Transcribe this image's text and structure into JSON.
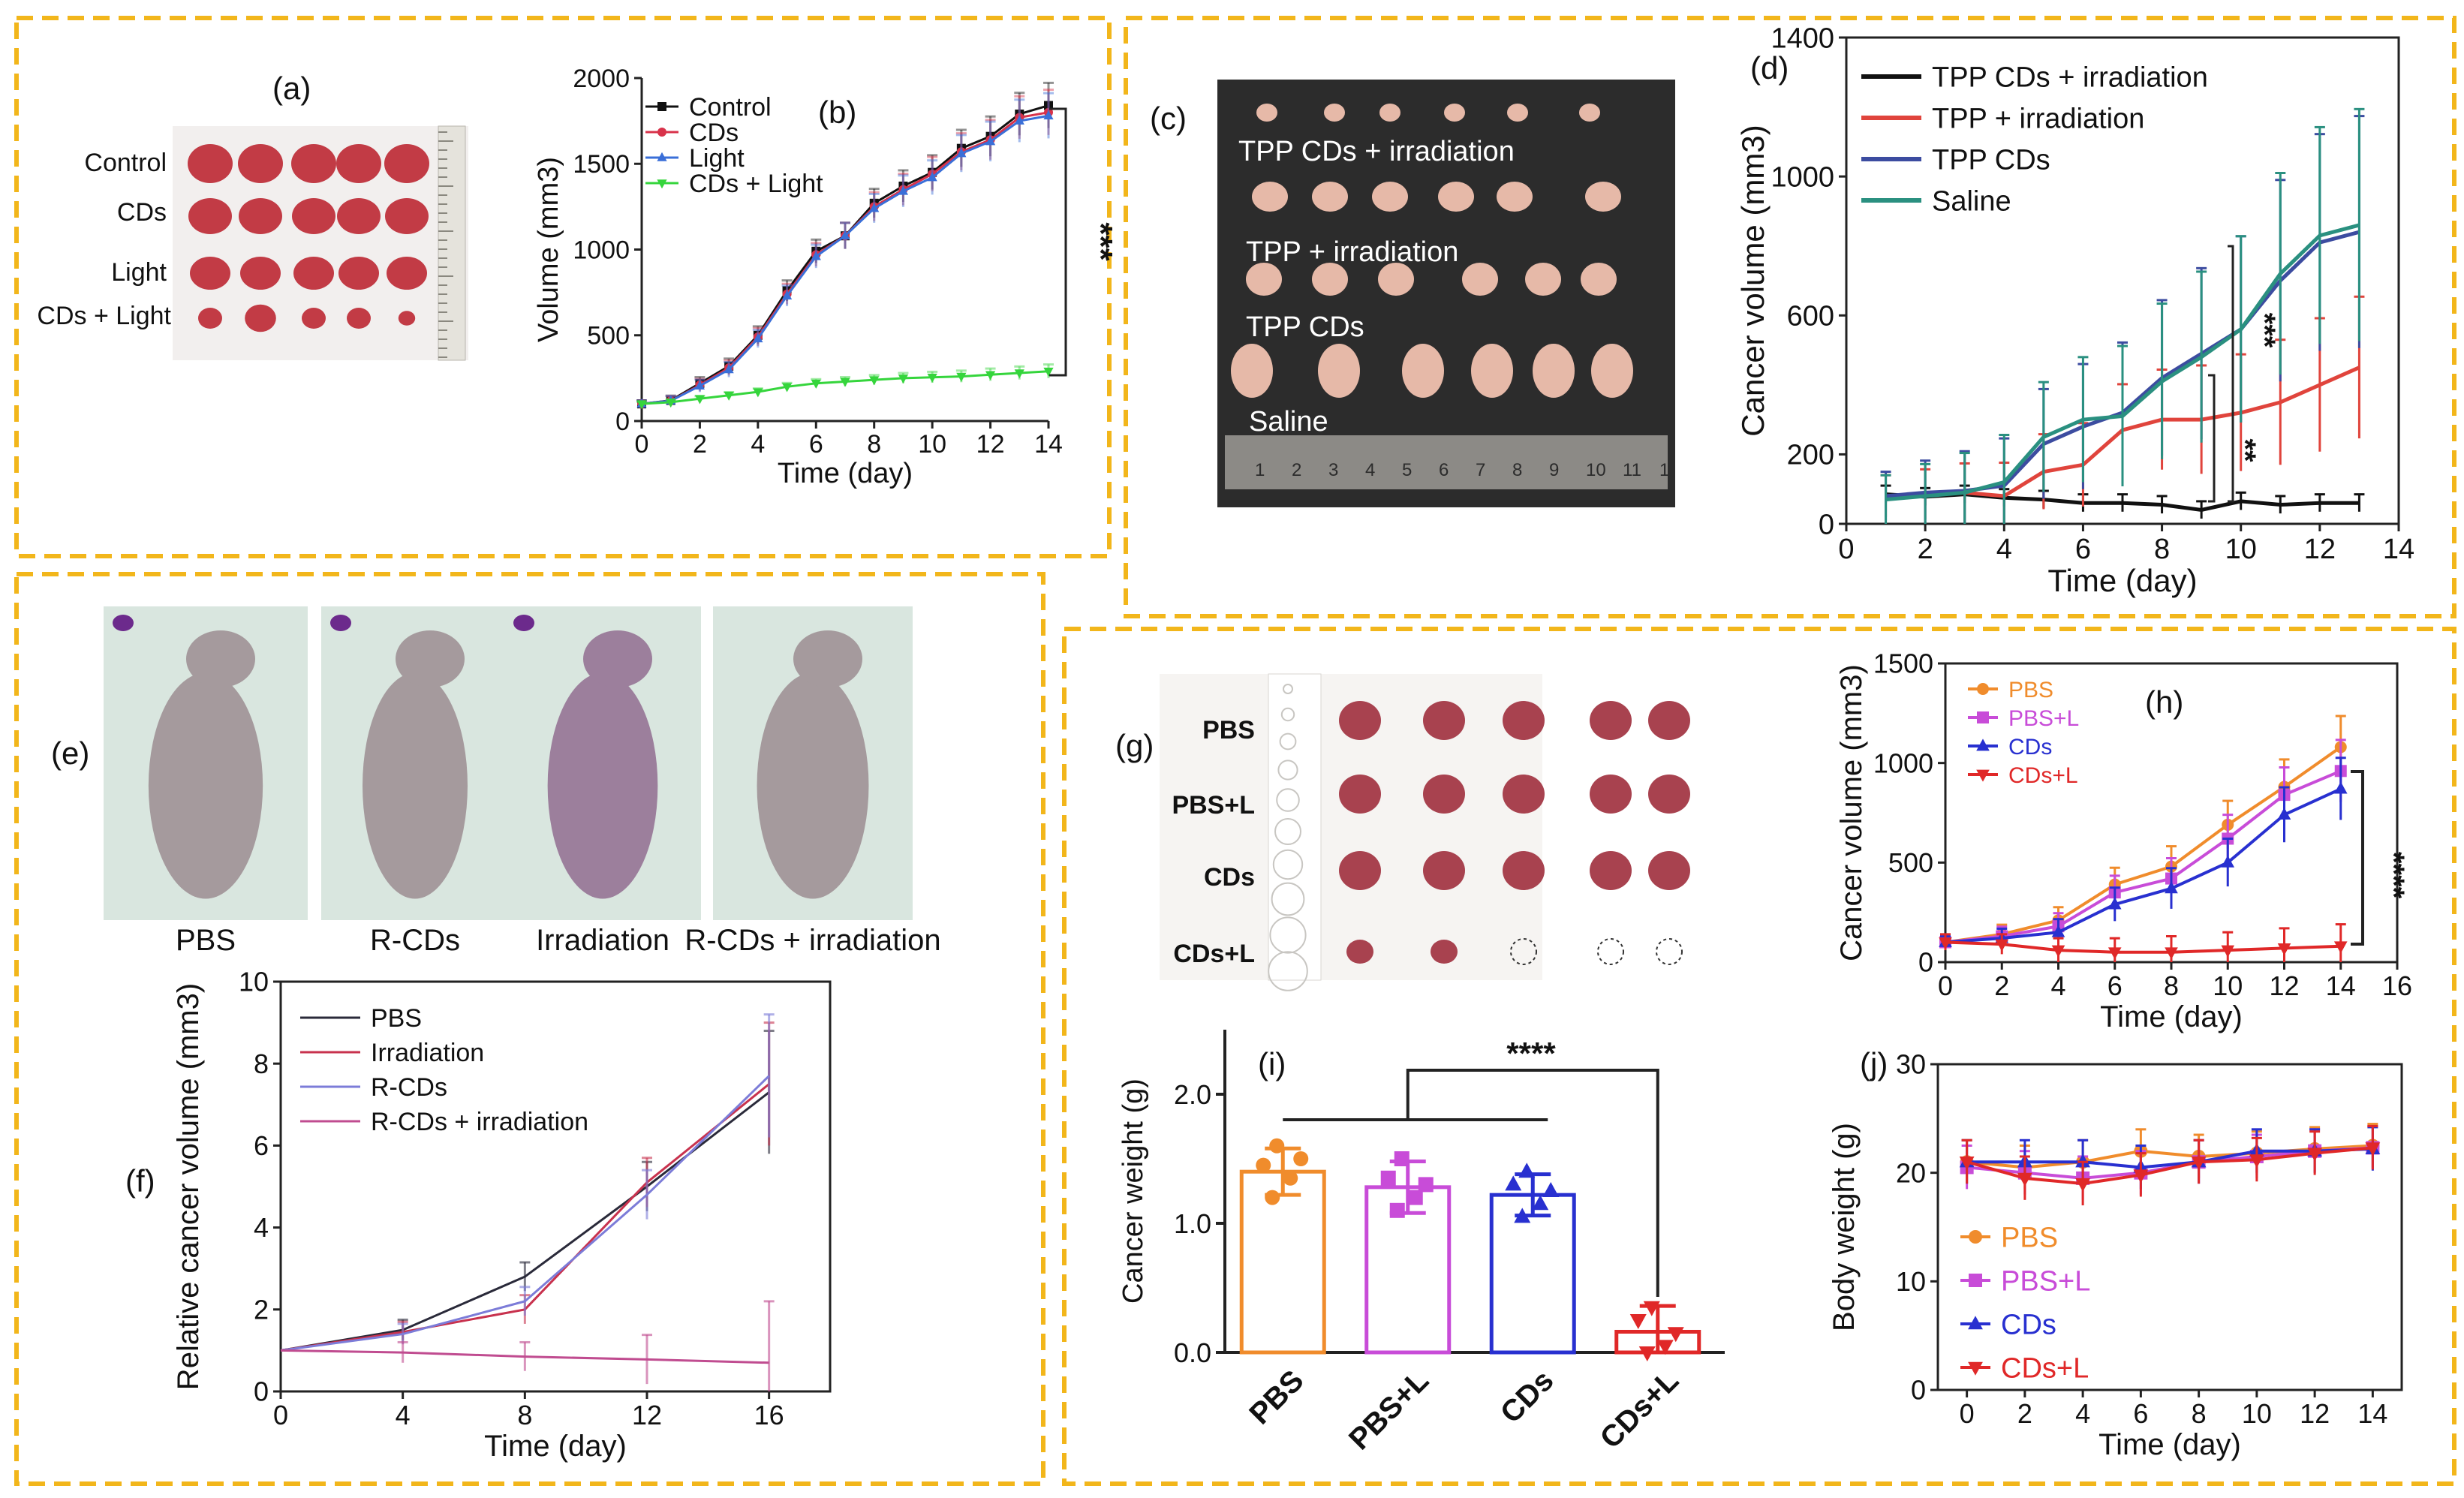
{
  "panel_letters": [
    "(a)",
    "(b)",
    "(c)",
    "(d)",
    "(e)",
    "(f)",
    "(g)",
    "(h)",
    "(i)",
    "(j)"
  ],
  "colors": {
    "border": "#f2b61b",
    "tumor": "#c23b45",
    "photo_dark": "#2c2c2c",
    "mouse": "#a59a9d"
  },
  "photo_a": {
    "row_labels": [
      "Control",
      "CDs",
      "Light",
      "CDs + Light"
    ],
    "counts": [
      5,
      5,
      5,
      5
    ]
  },
  "photo_c": {
    "group_labels": [
      "TPP CDs + irradiation",
      "TPP + irradiation",
      "TPP CDs",
      "Saline"
    ],
    "ruler_numbers": [
      "1",
      "2",
      "3",
      "4",
      "5",
      "6",
      "7",
      "8",
      "9",
      "10",
      "11",
      "1"
    ]
  },
  "photo_e": {
    "captions": [
      "PBS",
      "R-CDs",
      "Irradiation",
      "R-CDs + irradiation"
    ]
  },
  "photo_g": {
    "row_labels": [
      "PBS",
      "PBS+L",
      "CDs",
      "CDs+L"
    ],
    "tumor_counts": [
      5,
      5,
      5,
      2
    ]
  },
  "chart_data": [
    {
      "id": "b",
      "type": "line",
      "title": "",
      "xlabel": "Time (day)",
      "ylabel": "Volume (mm3)",
      "xlim": [
        0,
        14
      ],
      "ylim": [
        0,
        2000
      ],
      "xticks": [
        "0",
        "2",
        "4",
        "6",
        "8",
        "10",
        "12",
        "14"
      ],
      "yticks": [
        "0",
        "500",
        "1000",
        "1500",
        "2000"
      ],
      "x": [
        0,
        1,
        2,
        3,
        4,
        5,
        6,
        7,
        8,
        9,
        10,
        11,
        12,
        13,
        14
      ],
      "series": [
        {
          "name": "Control",
          "color": "#111111",
          "marker": "square",
          "values": [
            100,
            120,
            220,
            320,
            500,
            760,
            990,
            1080,
            1270,
            1370,
            1450,
            1590,
            1660,
            1790,
            1840
          ]
        },
        {
          "name": "CDs",
          "color": "#d8324a",
          "marker": "circle",
          "values": [
            100,
            118,
            210,
            310,
            490,
            740,
            970,
            1080,
            1250,
            1350,
            1440,
            1570,
            1640,
            1770,
            1800
          ]
        },
        {
          "name": "Light",
          "color": "#3a6fd8",
          "marker": "triangle",
          "values": [
            100,
            118,
            205,
            300,
            480,
            730,
            960,
            1080,
            1240,
            1340,
            1420,
            1560,
            1630,
            1750,
            1780
          ]
        },
        {
          "name": "CDs + Light",
          "color": "#35d53c",
          "marker": "triangle-down",
          "values": [
            100,
            110,
            130,
            150,
            170,
            200,
            220,
            230,
            240,
            250,
            255,
            260,
            270,
            280,
            290
          ]
        }
      ],
      "annotation": "***"
    },
    {
      "id": "d",
      "type": "line",
      "title": "",
      "xlabel": "Time (day)",
      "ylabel": "Cancer volume (mm3)",
      "xlim": [
        0,
        14
      ],
      "ylim": [
        0,
        1400
      ],
      "xticks": [
        "0",
        "2",
        "4",
        "6",
        "8",
        "10",
        "12",
        "14"
      ],
      "yticks": [
        "0",
        "200",
        "600",
        "1000",
        "1400"
      ],
      "x": [
        1,
        2,
        3,
        4,
        5,
        6,
        7,
        8,
        9,
        10,
        11,
        12,
        13
      ],
      "series": [
        {
          "name": "TPP CDs + irradiation",
          "color": "#111111",
          "values": [
            85,
            78,
            85,
            75,
            70,
            60,
            60,
            55,
            40,
            65,
            55,
            60,
            60
          ]
        },
        {
          "name": "TPP + irradiation",
          "color": "#e0443c",
          "values": [
            80,
            85,
            90,
            80,
            150,
            170,
            270,
            300,
            300,
            320,
            350,
            400,
            450
          ]
        },
        {
          "name": "TPP CDs",
          "color": "#3c4ca0",
          "values": [
            80,
            90,
            95,
            110,
            230,
            280,
            320,
            420,
            490,
            560,
            700,
            810,
            840
          ]
        },
        {
          "name": "Saline",
          "color": "#2a9080",
          "values": [
            70,
            80,
            90,
            120,
            250,
            300,
            310,
            410,
            480,
            560,
            720,
            830,
            860
          ]
        }
      ],
      "annotations": [
        "***",
        "**"
      ]
    },
    {
      "id": "f",
      "type": "line",
      "title": "",
      "xlabel": "Time (day)",
      "ylabel": "Relative cancer volume (mm3)",
      "xlim": [
        0,
        18
      ],
      "ylim": [
        0,
        10
      ],
      "xticks": [
        "0",
        "4",
        "8",
        "12",
        "16"
      ],
      "yticks": [
        "0",
        "2",
        "4",
        "6",
        "8",
        "10"
      ],
      "x": [
        0,
        4,
        8,
        12,
        16
      ],
      "series": [
        {
          "name": "PBS",
          "color": "#2a2a3a",
          "values": [
            1,
            1.5,
            2.8,
            5.0,
            7.3
          ]
        },
        {
          "name": "Irradiation",
          "color": "#c8324e",
          "values": [
            1,
            1.45,
            2.0,
            5.1,
            7.5
          ]
        },
        {
          "name": "R-CDs",
          "color": "#7c7cd8",
          "values": [
            1,
            1.4,
            2.2,
            4.8,
            7.7
          ]
        },
        {
          "name": "R-CDs + irradiation",
          "color": "#c04c90",
          "values": [
            1,
            0.95,
            0.85,
            0.78,
            0.7
          ]
        }
      ]
    },
    {
      "id": "h",
      "type": "line",
      "title": "",
      "xlabel": "Time (day)",
      "ylabel": "Cancer volume (mm3)",
      "xlim": [
        0,
        16
      ],
      "ylim": [
        0,
        1500
      ],
      "xticks": [
        "0",
        "2",
        "4",
        "6",
        "8",
        "10",
        "12",
        "14",
        "16"
      ],
      "yticks": [
        "0",
        "500",
        "1000",
        "1500"
      ],
      "x": [
        0,
        2,
        4,
        6,
        8,
        10,
        12,
        14
      ],
      "series": [
        {
          "name": "PBS",
          "color": "#f08c2c",
          "marker": "circle",
          "values": [
            100,
            140,
            210,
            390,
            480,
            690,
            880,
            1080
          ]
        },
        {
          "name": "PBS+L",
          "color": "#c84cd8",
          "marker": "square",
          "values": [
            100,
            130,
            180,
            350,
            420,
            620,
            840,
            960
          ]
        },
        {
          "name": "CDs",
          "color": "#2830d0",
          "marker": "triangle",
          "values": [
            100,
            120,
            150,
            290,
            370,
            500,
            740,
            870
          ]
        },
        {
          "name": "CDs+L",
          "color": "#e02828",
          "marker": "triangle-down",
          "values": [
            100,
            90,
            60,
            50,
            50,
            60,
            70,
            80
          ]
        }
      ],
      "annotation": "****"
    },
    {
      "id": "i",
      "type": "bar",
      "title": "",
      "xlabel": "",
      "ylabel": "Cancer weight (g)",
      "ylim": [
        0,
        2.5
      ],
      "yticks": [
        "0.0",
        "1.0",
        "2.0"
      ],
      "categories": [
        "PBS",
        "PBS+L",
        "CDs",
        "CDs+L"
      ],
      "values": [
        1.4,
        1.28,
        1.22,
        0.16
      ],
      "errors": [
        0.18,
        0.2,
        0.16,
        0.2
      ],
      "colors": [
        "#f08c2c",
        "#c84cd8",
        "#2830d0",
        "#e02828"
      ],
      "points": [
        [
          1.6,
          1.45,
          1.35,
          1.2,
          1.5
        ],
        [
          1.5,
          1.35,
          1.2,
          1.1,
          1.3
        ],
        [
          1.4,
          1.3,
          1.15,
          1.05,
          1.25
        ],
        [
          0.35,
          0.25,
          0.05,
          0.0,
          0.15
        ]
      ],
      "annotation": "****"
    },
    {
      "id": "j",
      "type": "line",
      "title": "",
      "xlabel": "Time (day)",
      "ylabel": "Body weight (g)",
      "xlim": [
        -1,
        15
      ],
      "ylim": [
        0,
        30
      ],
      "xticks": [
        "0",
        "2",
        "4",
        "6",
        "8",
        "10",
        "12",
        "14"
      ],
      "yticks": [
        "0",
        "10",
        "20",
        "30"
      ],
      "x": [
        0,
        2,
        4,
        6,
        8,
        10,
        12,
        14
      ],
      "series": [
        {
          "name": "PBS",
          "color": "#f08c2c",
          "marker": "circle",
          "values": [
            21,
            20.5,
            21,
            22,
            21.5,
            21.8,
            22.2,
            22.5
          ]
        },
        {
          "name": "PBS+L",
          "color": "#c84cd8",
          "marker": "square",
          "values": [
            20.5,
            20,
            19.5,
            20,
            21,
            21.5,
            22,
            22.3
          ]
        },
        {
          "name": "CDs",
          "color": "#2830d0",
          "marker": "triangle",
          "values": [
            21,
            21,
            21,
            20.5,
            21,
            22,
            22,
            22.2
          ]
        },
        {
          "name": "CDs+L",
          "color": "#e02828",
          "marker": "triangle-down",
          "values": [
            21,
            19.5,
            19,
            19.8,
            21,
            21.2,
            21.8,
            22.3
          ]
        }
      ]
    }
  ]
}
